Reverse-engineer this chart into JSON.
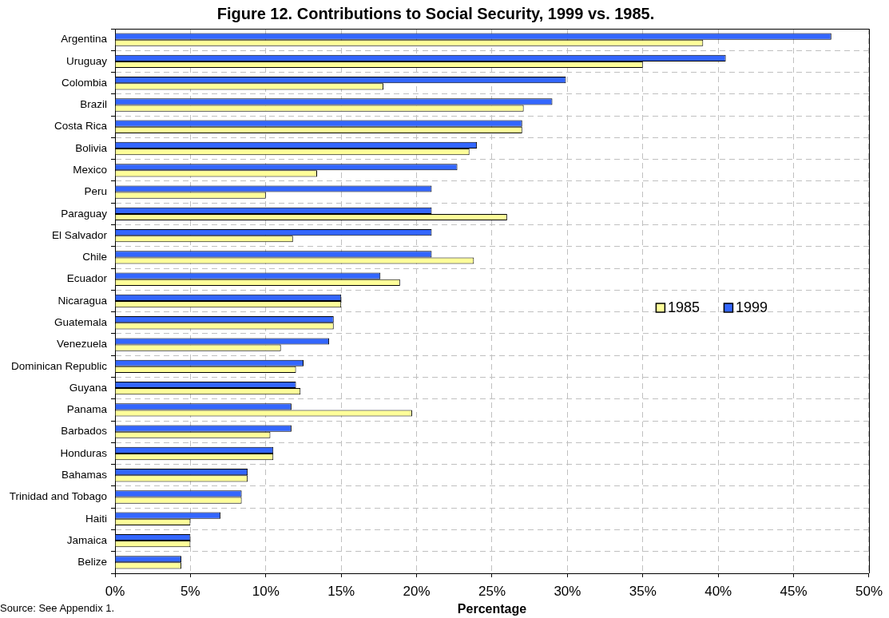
{
  "chart_data": {
    "type": "bar",
    "orientation": "horizontal",
    "title": "Figure 12. Contributions to Social Security, 1999 vs. 1985.",
    "xlabel": "Percentage",
    "categories": [
      "Argentina",
      "Uruguay",
      "Colombia",
      "Brazil",
      "Costa Rica",
      "Bolivia",
      "Mexico",
      "Peru",
      "Paraguay",
      "El Salvador",
      "Chile",
      "Ecuador",
      "Nicaragua",
      "Guatemala",
      "Venezuela",
      "Dominican Republic",
      "Guyana",
      "Panama",
      "Barbados",
      "Honduras",
      "Bahamas",
      "Trinidad and Tobago",
      "Haiti",
      "Jamaica",
      "Belize"
    ],
    "series": [
      {
        "name": "1985",
        "color": "#ffff99",
        "values": [
          39.0,
          35.0,
          17.8,
          27.1,
          27.0,
          23.5,
          13.4,
          10.0,
          26.0,
          11.8,
          23.8,
          18.9,
          15.0,
          14.5,
          11.0,
          12.0,
          12.3,
          19.7,
          10.3,
          10.5,
          8.8,
          8.4,
          5.0,
          5.0,
          4.4
        ]
      },
      {
        "name": "1999",
        "color": "#3366ff",
        "values": [
          47.5,
          40.5,
          29.9,
          29.0,
          27.0,
          24.0,
          22.7,
          21.0,
          21.0,
          21.0,
          21.0,
          17.6,
          15.0,
          14.5,
          14.2,
          12.5,
          12.0,
          11.7,
          11.7,
          10.5,
          8.8,
          8.4,
          7.0,
          5.0,
          4.4
        ]
      }
    ],
    "xlim": [
      0,
      50
    ],
    "xticks": [
      {
        "value": 0,
        "label": "0%"
      },
      {
        "value": 5,
        "label": "5%"
      },
      {
        "value": 10,
        "label": "10%"
      },
      {
        "value": 15,
        "label": "15%"
      },
      {
        "value": 20,
        "label": "20%"
      },
      {
        "value": 25,
        "label": "25%"
      },
      {
        "value": 30,
        "label": "30%"
      },
      {
        "value": 35,
        "label": "35%"
      },
      {
        "value": 40,
        "label": "40%"
      },
      {
        "value": 45,
        "label": "45%"
      },
      {
        "value": 50,
        "label": "50%"
      }
    ],
    "grid": true,
    "legend": "right",
    "annotations": [
      "Source: See Appendix 1."
    ]
  }
}
